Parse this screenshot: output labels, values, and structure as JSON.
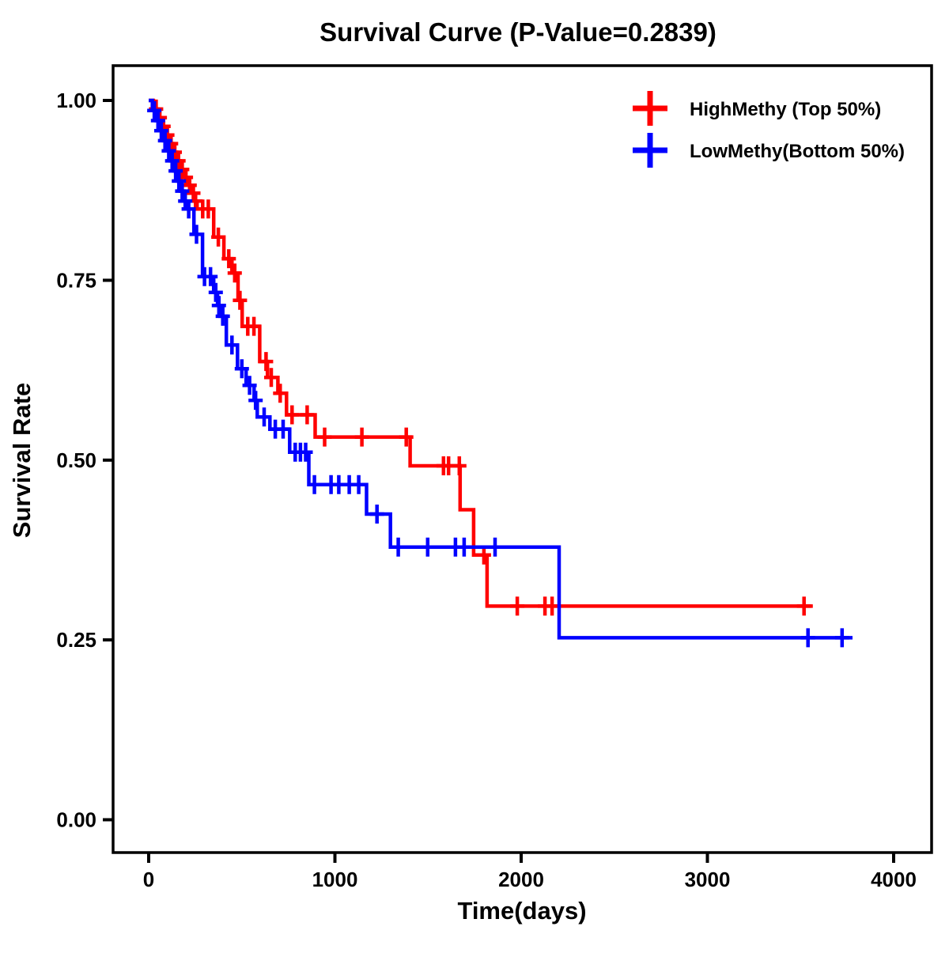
{
  "chart": {
    "title": "Survival Curve (P-Value=0.2839)",
    "x_axis_label": "Time(days)",
    "y_axis_label": "Survival Rate",
    "p_value": "0.2839",
    "frame_color": "#000000",
    "background_color": "#ffffff"
  },
  "legend": {
    "items": [
      {
        "label": "HighMethy (Top 50%)",
        "color": "#ff0000",
        "marker": "plus-icon"
      },
      {
        "label": "LowMethy(Bottom 50%)",
        "color": "#0000ff",
        "marker": "plus-icon"
      }
    ]
  },
  "chart_data": {
    "type": "line",
    "subtype": "kaplan-meier-step-curve",
    "title": "Survival Curve (P-Value=0.2839)",
    "xlabel": "Time(days)",
    "ylabel": "Survival Rate",
    "xlim": [
      0,
      4000
    ],
    "ylim": [
      0,
      1
    ],
    "grid": false,
    "legend_position": "top-right-inside",
    "x_ticks": [
      {
        "label": "0",
        "value": 0
      },
      {
        "label": "1000",
        "value": 1000
      },
      {
        "label": "2000",
        "value": 2000
      },
      {
        "label": "3000",
        "value": 3000
      },
      {
        "label": "4000",
        "value": 4000
      }
    ],
    "y_ticks": [
      {
        "label": "0.00",
        "value": 0.0
      },
      {
        "label": "0.25",
        "value": 0.25
      },
      {
        "label": "0.50",
        "value": 0.5
      },
      {
        "label": "0.75",
        "value": 0.75
      },
      {
        "label": "1.00",
        "value": 1.0
      }
    ],
    "series": [
      {
        "name": "HighMethy (Top 50%)",
        "color": "#ff0000",
        "end_time": 3566,
        "steps": [
          [
            0,
            1.0
          ],
          [
            25,
            0.988
          ],
          [
            50,
            0.976
          ],
          [
            70,
            0.964
          ],
          [
            90,
            0.952
          ],
          [
            110,
            0.94
          ],
          [
            130,
            0.928
          ],
          [
            150,
            0.916
          ],
          [
            170,
            0.904
          ],
          [
            190,
            0.893
          ],
          [
            210,
            0.882
          ],
          [
            230,
            0.871
          ],
          [
            245,
            0.86
          ],
          [
            260,
            0.849
          ],
          [
            349,
            0.81
          ],
          [
            404,
            0.78
          ],
          [
            447,
            0.76
          ],
          [
            480,
            0.722
          ],
          [
            502,
            0.686
          ],
          [
            596,
            0.637
          ],
          [
            638,
            0.615
          ],
          [
            694,
            0.593
          ],
          [
            740,
            0.563
          ],
          [
            894,
            0.532
          ],
          [
            1404,
            0.492
          ],
          [
            1672,
            0.431
          ],
          [
            1745,
            0.368
          ],
          [
            1817,
            0.297
          ]
        ],
        "censors": [
          [
            40,
            0.988
          ],
          [
            60,
            0.976
          ],
          [
            80,
            0.964
          ],
          [
            100,
            0.952
          ],
          [
            120,
            0.94
          ],
          [
            140,
            0.928
          ],
          [
            160,
            0.916
          ],
          [
            180,
            0.904
          ],
          [
            200,
            0.893
          ],
          [
            220,
            0.882
          ],
          [
            240,
            0.871
          ],
          [
            252,
            0.86
          ],
          [
            290,
            0.849
          ],
          [
            320,
            0.849
          ],
          [
            374,
            0.81
          ],
          [
            430,
            0.78
          ],
          [
            462,
            0.76
          ],
          [
            490,
            0.722
          ],
          [
            532,
            0.686
          ],
          [
            565,
            0.686
          ],
          [
            630,
            0.637
          ],
          [
            658,
            0.615
          ],
          [
            706,
            0.593
          ],
          [
            770,
            0.563
          ],
          [
            851,
            0.563
          ],
          [
            945,
            0.532
          ],
          [
            1145,
            0.532
          ],
          [
            1383,
            0.532
          ],
          [
            1583,
            0.492
          ],
          [
            1610,
            0.492
          ],
          [
            1668,
            0.492
          ],
          [
            1800,
            0.368
          ],
          [
            1979,
            0.297
          ],
          [
            2128,
            0.297
          ],
          [
            2166,
            0.297
          ],
          [
            3519,
            0.297
          ]
        ]
      },
      {
        "name": "LowMethy(Bottom 50%)",
        "color": "#0000ff",
        "end_time": 3779,
        "steps": [
          [
            0,
            1.0
          ],
          [
            20,
            0.986
          ],
          [
            40,
            0.972
          ],
          [
            60,
            0.958
          ],
          [
            80,
            0.944
          ],
          [
            100,
            0.93
          ],
          [
            118,
            0.916
          ],
          [
            136,
            0.902
          ],
          [
            154,
            0.888
          ],
          [
            172,
            0.874
          ],
          [
            190,
            0.86
          ],
          [
            205,
            0.849
          ],
          [
            243,
            0.814
          ],
          [
            289,
            0.755
          ],
          [
            349,
            0.733
          ],
          [
            370,
            0.715
          ],
          [
            383,
            0.7
          ],
          [
            417,
            0.66
          ],
          [
            477,
            0.627
          ],
          [
            523,
            0.604
          ],
          [
            566,
            0.583
          ],
          [
            583,
            0.56
          ],
          [
            651,
            0.543
          ],
          [
            757,
            0.511
          ],
          [
            860,
            0.466
          ],
          [
            1170,
            0.425
          ],
          [
            1298,
            0.379
          ],
          [
            2204,
            0.253
          ]
        ],
        "censors": [
          [
            30,
            0.986
          ],
          [
            50,
            0.972
          ],
          [
            68,
            0.958
          ],
          [
            88,
            0.944
          ],
          [
            108,
            0.93
          ],
          [
            126,
            0.916
          ],
          [
            145,
            0.902
          ],
          [
            162,
            0.888
          ],
          [
            180,
            0.874
          ],
          [
            196,
            0.86
          ],
          [
            215,
            0.849
          ],
          [
            257,
            0.814
          ],
          [
            300,
            0.755
          ],
          [
            332,
            0.755
          ],
          [
            360,
            0.733
          ],
          [
            377,
            0.715
          ],
          [
            398,
            0.7
          ],
          [
            447,
            0.66
          ],
          [
            500,
            0.627
          ],
          [
            542,
            0.604
          ],
          [
            574,
            0.583
          ],
          [
            620,
            0.56
          ],
          [
            680,
            0.543
          ],
          [
            722,
            0.543
          ],
          [
            787,
            0.511
          ],
          [
            815,
            0.511
          ],
          [
            843,
            0.511
          ],
          [
            890,
            0.466
          ],
          [
            979,
            0.466
          ],
          [
            1021,
            0.466
          ],
          [
            1077,
            0.466
          ],
          [
            1128,
            0.466
          ],
          [
            1226,
            0.425
          ],
          [
            1340,
            0.379
          ],
          [
            1498,
            0.379
          ],
          [
            1647,
            0.379
          ],
          [
            1694,
            0.379
          ],
          [
            1860,
            0.379
          ],
          [
            3540,
            0.253
          ],
          [
            3723,
            0.253
          ]
        ]
      }
    ]
  }
}
